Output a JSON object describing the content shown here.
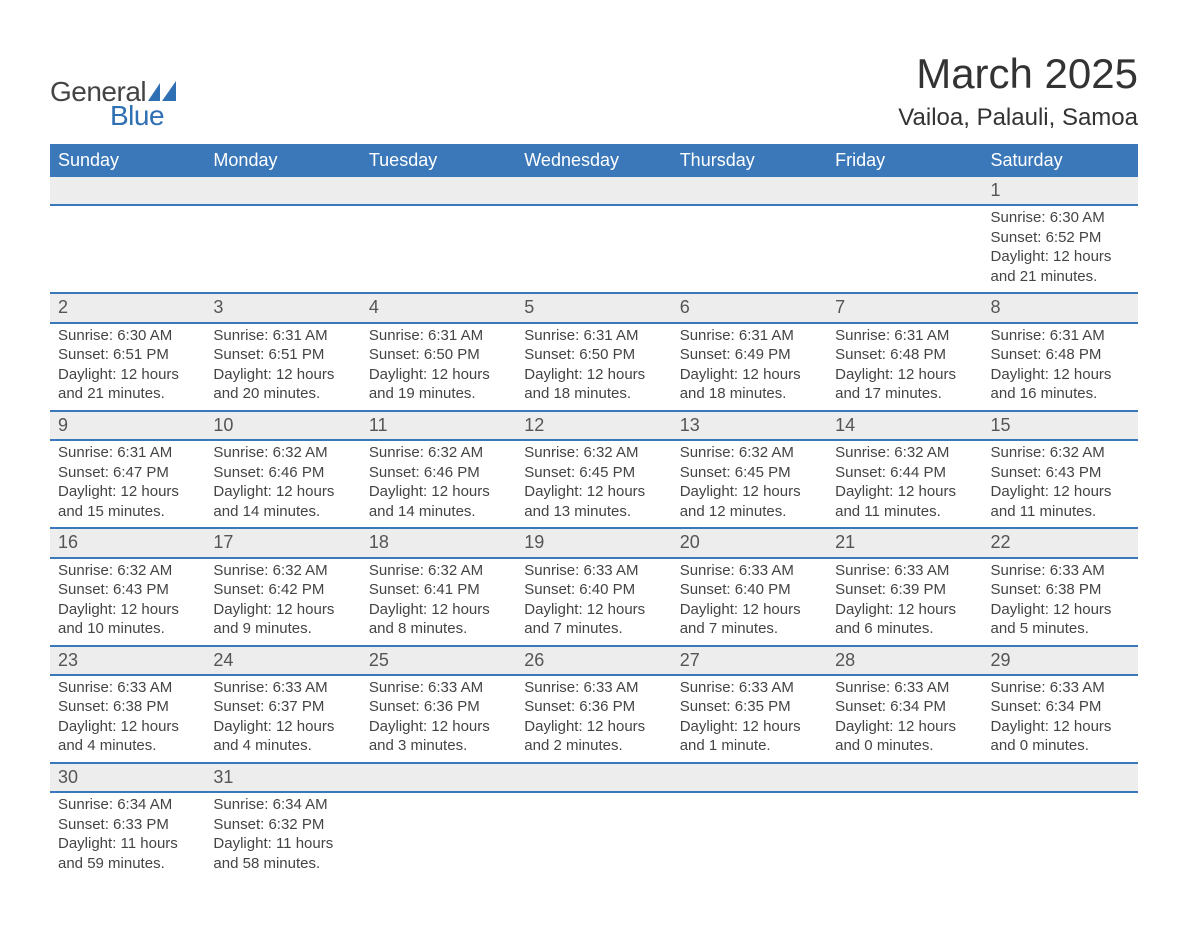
{
  "logo": {
    "text_general": "General",
    "text_blue": "Blue",
    "sail_color": "#2f6fb3"
  },
  "header": {
    "month_title": "March 2025",
    "location": "Vailoa, Palauli, Samoa"
  },
  "calendar": {
    "header_bg": "#3a78b9",
    "header_fg": "#ffffff",
    "row_border_color": "#3a78b9",
    "daynum_bg": "#ededed",
    "text_color": "#444444",
    "font_size_body": 15,
    "font_size_header": 18,
    "font_size_daynum": 18,
    "columns": [
      "Sunday",
      "Monday",
      "Tuesday",
      "Wednesday",
      "Thursday",
      "Friday",
      "Saturday"
    ],
    "weeks": [
      [
        null,
        null,
        null,
        null,
        null,
        null,
        {
          "day": "1",
          "sunrise": "Sunrise: 6:30 AM",
          "sunset": "Sunset: 6:52 PM",
          "daylight1": "Daylight: 12 hours",
          "daylight2": "and 21 minutes."
        }
      ],
      [
        {
          "day": "2",
          "sunrise": "Sunrise: 6:30 AM",
          "sunset": "Sunset: 6:51 PM",
          "daylight1": "Daylight: 12 hours",
          "daylight2": "and 21 minutes."
        },
        {
          "day": "3",
          "sunrise": "Sunrise: 6:31 AM",
          "sunset": "Sunset: 6:51 PM",
          "daylight1": "Daylight: 12 hours",
          "daylight2": "and 20 minutes."
        },
        {
          "day": "4",
          "sunrise": "Sunrise: 6:31 AM",
          "sunset": "Sunset: 6:50 PM",
          "daylight1": "Daylight: 12 hours",
          "daylight2": "and 19 minutes."
        },
        {
          "day": "5",
          "sunrise": "Sunrise: 6:31 AM",
          "sunset": "Sunset: 6:50 PM",
          "daylight1": "Daylight: 12 hours",
          "daylight2": "and 18 minutes."
        },
        {
          "day": "6",
          "sunrise": "Sunrise: 6:31 AM",
          "sunset": "Sunset: 6:49 PM",
          "daylight1": "Daylight: 12 hours",
          "daylight2": "and 18 minutes."
        },
        {
          "day": "7",
          "sunrise": "Sunrise: 6:31 AM",
          "sunset": "Sunset: 6:48 PM",
          "daylight1": "Daylight: 12 hours",
          "daylight2": "and 17 minutes."
        },
        {
          "day": "8",
          "sunrise": "Sunrise: 6:31 AM",
          "sunset": "Sunset: 6:48 PM",
          "daylight1": "Daylight: 12 hours",
          "daylight2": "and 16 minutes."
        }
      ],
      [
        {
          "day": "9",
          "sunrise": "Sunrise: 6:31 AM",
          "sunset": "Sunset: 6:47 PM",
          "daylight1": "Daylight: 12 hours",
          "daylight2": "and 15 minutes."
        },
        {
          "day": "10",
          "sunrise": "Sunrise: 6:32 AM",
          "sunset": "Sunset: 6:46 PM",
          "daylight1": "Daylight: 12 hours",
          "daylight2": "and 14 minutes."
        },
        {
          "day": "11",
          "sunrise": "Sunrise: 6:32 AM",
          "sunset": "Sunset: 6:46 PM",
          "daylight1": "Daylight: 12 hours",
          "daylight2": "and 14 minutes."
        },
        {
          "day": "12",
          "sunrise": "Sunrise: 6:32 AM",
          "sunset": "Sunset: 6:45 PM",
          "daylight1": "Daylight: 12 hours",
          "daylight2": "and 13 minutes."
        },
        {
          "day": "13",
          "sunrise": "Sunrise: 6:32 AM",
          "sunset": "Sunset: 6:45 PM",
          "daylight1": "Daylight: 12 hours",
          "daylight2": "and 12 minutes."
        },
        {
          "day": "14",
          "sunrise": "Sunrise: 6:32 AM",
          "sunset": "Sunset: 6:44 PM",
          "daylight1": "Daylight: 12 hours",
          "daylight2": "and 11 minutes."
        },
        {
          "day": "15",
          "sunrise": "Sunrise: 6:32 AM",
          "sunset": "Sunset: 6:43 PM",
          "daylight1": "Daylight: 12 hours",
          "daylight2": "and 11 minutes."
        }
      ],
      [
        {
          "day": "16",
          "sunrise": "Sunrise: 6:32 AM",
          "sunset": "Sunset: 6:43 PM",
          "daylight1": "Daylight: 12 hours",
          "daylight2": "and 10 minutes."
        },
        {
          "day": "17",
          "sunrise": "Sunrise: 6:32 AM",
          "sunset": "Sunset: 6:42 PM",
          "daylight1": "Daylight: 12 hours",
          "daylight2": "and 9 minutes."
        },
        {
          "day": "18",
          "sunrise": "Sunrise: 6:32 AM",
          "sunset": "Sunset: 6:41 PM",
          "daylight1": "Daylight: 12 hours",
          "daylight2": "and 8 minutes."
        },
        {
          "day": "19",
          "sunrise": "Sunrise: 6:33 AM",
          "sunset": "Sunset: 6:40 PM",
          "daylight1": "Daylight: 12 hours",
          "daylight2": "and 7 minutes."
        },
        {
          "day": "20",
          "sunrise": "Sunrise: 6:33 AM",
          "sunset": "Sunset: 6:40 PM",
          "daylight1": "Daylight: 12 hours",
          "daylight2": "and 7 minutes."
        },
        {
          "day": "21",
          "sunrise": "Sunrise: 6:33 AM",
          "sunset": "Sunset: 6:39 PM",
          "daylight1": "Daylight: 12 hours",
          "daylight2": "and 6 minutes."
        },
        {
          "day": "22",
          "sunrise": "Sunrise: 6:33 AM",
          "sunset": "Sunset: 6:38 PM",
          "daylight1": "Daylight: 12 hours",
          "daylight2": "and 5 minutes."
        }
      ],
      [
        {
          "day": "23",
          "sunrise": "Sunrise: 6:33 AM",
          "sunset": "Sunset: 6:38 PM",
          "daylight1": "Daylight: 12 hours",
          "daylight2": "and 4 minutes."
        },
        {
          "day": "24",
          "sunrise": "Sunrise: 6:33 AM",
          "sunset": "Sunset: 6:37 PM",
          "daylight1": "Daylight: 12 hours",
          "daylight2": "and 4 minutes."
        },
        {
          "day": "25",
          "sunrise": "Sunrise: 6:33 AM",
          "sunset": "Sunset: 6:36 PM",
          "daylight1": "Daylight: 12 hours",
          "daylight2": "and 3 minutes."
        },
        {
          "day": "26",
          "sunrise": "Sunrise: 6:33 AM",
          "sunset": "Sunset: 6:36 PM",
          "daylight1": "Daylight: 12 hours",
          "daylight2": "and 2 minutes."
        },
        {
          "day": "27",
          "sunrise": "Sunrise: 6:33 AM",
          "sunset": "Sunset: 6:35 PM",
          "daylight1": "Daylight: 12 hours",
          "daylight2": "and 1 minute."
        },
        {
          "day": "28",
          "sunrise": "Sunrise: 6:33 AM",
          "sunset": "Sunset: 6:34 PM",
          "daylight1": "Daylight: 12 hours",
          "daylight2": "and 0 minutes."
        },
        {
          "day": "29",
          "sunrise": "Sunrise: 6:33 AM",
          "sunset": "Sunset: 6:34 PM",
          "daylight1": "Daylight: 12 hours",
          "daylight2": "and 0 minutes."
        }
      ],
      [
        {
          "day": "30",
          "sunrise": "Sunrise: 6:34 AM",
          "sunset": "Sunset: 6:33 PM",
          "daylight1": "Daylight: 11 hours",
          "daylight2": "and 59 minutes."
        },
        {
          "day": "31",
          "sunrise": "Sunrise: 6:34 AM",
          "sunset": "Sunset: 6:32 PM",
          "daylight1": "Daylight: 11 hours",
          "daylight2": "and 58 minutes."
        },
        null,
        null,
        null,
        null,
        null
      ]
    ]
  }
}
